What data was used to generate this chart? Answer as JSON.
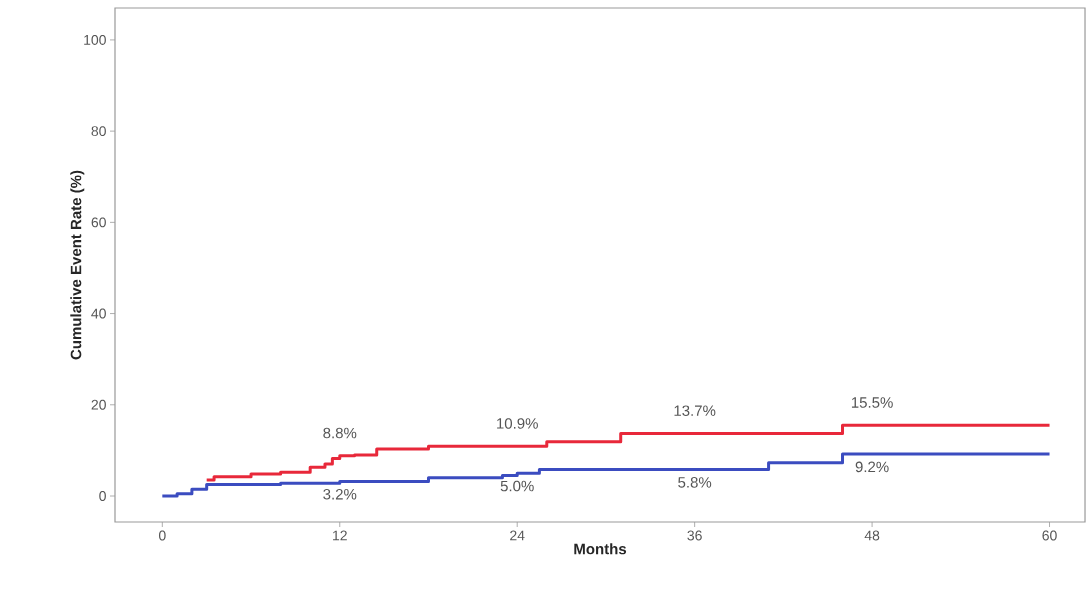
{
  "chart_data": {
    "type": "step",
    "xlabel": "Months",
    "ylabel": "Cumulative Event Rate (%)",
    "xlim": [
      -3.2,
      62.4
    ],
    "ylim": [
      -5.7,
      107
    ],
    "xticks": [
      0,
      12,
      24,
      36,
      48,
      60
    ],
    "yticks": [
      0,
      20,
      40,
      60,
      80,
      100
    ],
    "grid": false,
    "series": [
      {
        "color": "#e8283a",
        "x": [
          3,
          3.5,
          6,
          8,
          10,
          11,
          11.5,
          12,
          13,
          14.5,
          18,
          26,
          31,
          46,
          60
        ],
        "values": [
          3.5,
          4.2,
          4.8,
          5.2,
          6.3,
          7,
          8.2,
          8.8,
          9,
          10.3,
          10.9,
          11.9,
          13.7,
          15.5,
          15.5
        ]
      },
      {
        "color": "#3b4cc0",
        "x": [
          0,
          1,
          2,
          3,
          8,
          12,
          18,
          23,
          24,
          25.5,
          41,
          46,
          60
        ],
        "values": [
          0,
          0.5,
          1.5,
          2.5,
          2.8,
          3.2,
          4,
          4.5,
          5.0,
          5.8,
          7.3,
          9.2,
          9.2
        ]
      }
    ],
    "annotations": [
      {
        "text": "8.8%",
        "x": 12,
        "y": 8.8
      },
      {
        "text": "10.9%",
        "x": 24,
        "y": 10.9
      },
      {
        "text": "13.7%",
        "x": 36,
        "y": 13.7
      },
      {
        "text": "15.5%",
        "x": 48,
        "y": 15.5
      },
      {
        "text": "3.2%",
        "x": 12,
        "y": 3.2
      },
      {
        "text": "5.0%",
        "x": 24,
        "y": 5.0
      },
      {
        "text": "5.8%",
        "x": 36,
        "y": 5.8
      },
      {
        "text": "9.2%",
        "x": 48,
        "y": 9.2
      }
    ]
  }
}
